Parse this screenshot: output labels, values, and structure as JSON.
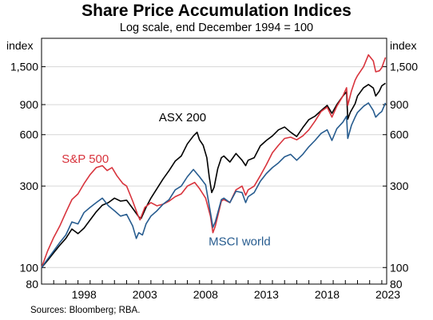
{
  "chart_data": {
    "type": "line",
    "title": "Share Price Accumulation Indices",
    "subtitle": "Log scale, end December 1994 = 100",
    "ylabel_left": "index",
    "ylabel_right": "index",
    "yscale": "log",
    "ylim": [
      80,
      2200
    ],
    "y_ticks": [
      80,
      100,
      300,
      600,
      900,
      1500
    ],
    "y_tick_labels": [
      "80",
      "100",
      "300",
      "600",
      "900",
      "1,500"
    ],
    "xlim": [
      1995.0,
      2023.4
    ],
    "x_ticks": [
      1998,
      2003,
      2008,
      2013,
      2018,
      2023
    ],
    "x_tick_labels": [
      "1998",
      "2003",
      "2008",
      "2013",
      "2018",
      "2023"
    ],
    "grid": "horizontal",
    "source": "Sources: Bloomberg; RBA.",
    "series": [
      {
        "name": "ASX 200",
        "color": "#000000",
        "points": [
          [
            1995.0,
            100
          ],
          [
            1995.5,
            110
          ],
          [
            1996.0,
            122
          ],
          [
            1996.5,
            135
          ],
          [
            1997.0,
            148
          ],
          [
            1997.5,
            168
          ],
          [
            1998.0,
            158
          ],
          [
            1998.5,
            170
          ],
          [
            1999.0,
            190
          ],
          [
            1999.5,
            212
          ],
          [
            2000.0,
            232
          ],
          [
            2000.5,
            240
          ],
          [
            2001.0,
            255
          ],
          [
            2001.5,
            245
          ],
          [
            2002.0,
            248
          ],
          [
            2002.5,
            222
          ],
          [
            2003.0,
            198
          ],
          [
            2003.2,
            194
          ],
          [
            2003.6,
            225
          ],
          [
            2004.0,
            255
          ],
          [
            2004.5,
            290
          ],
          [
            2005.0,
            330
          ],
          [
            2005.5,
            370
          ],
          [
            2006.0,
            420
          ],
          [
            2006.5,
            450
          ],
          [
            2007.0,
            530
          ],
          [
            2007.5,
            590
          ],
          [
            2007.8,
            620
          ],
          [
            2008.0,
            560
          ],
          [
            2008.3,
            520
          ],
          [
            2008.6,
            440
          ],
          [
            2008.8,
            340
          ],
          [
            2009.0,
            275
          ],
          [
            2009.2,
            295
          ],
          [
            2009.5,
            380
          ],
          [
            2009.8,
            440
          ],
          [
            2010.0,
            450
          ],
          [
            2010.5,
            415
          ],
          [
            2011.0,
            465
          ],
          [
            2011.5,
            425
          ],
          [
            2011.8,
            395
          ],
          [
            2012.0,
            425
          ],
          [
            2012.5,
            440
          ],
          [
            2013.0,
            515
          ],
          [
            2013.5,
            555
          ],
          [
            2014.0,
            590
          ],
          [
            2014.5,
            640
          ],
          [
            2015.0,
            665
          ],
          [
            2015.5,
            620
          ],
          [
            2016.0,
            585
          ],
          [
            2016.5,
            660
          ],
          [
            2017.0,
            735
          ],
          [
            2017.5,
            770
          ],
          [
            2018.0,
            830
          ],
          [
            2018.5,
            890
          ],
          [
            2018.9,
            800
          ],
          [
            2019.3,
            900
          ],
          [
            2019.8,
            1010
          ],
          [
            2020.1,
            1070
          ],
          [
            2020.2,
            740
          ],
          [
            2020.4,
            810
          ],
          [
            2020.8,
            910
          ],
          [
            2021.0,
            1010
          ],
          [
            2021.5,
            1130
          ],
          [
            2021.9,
            1180
          ],
          [
            2022.3,
            1125
          ],
          [
            2022.5,
            1010
          ],
          [
            2022.8,
            1080
          ],
          [
            2023.0,
            1160
          ],
          [
            2023.3,
            1200
          ]
        ]
      },
      {
        "name": "S&P 500",
        "color": "#d8343d",
        "points": [
          [
            1995.0,
            100
          ],
          [
            1995.5,
            125
          ],
          [
            1996.0,
            150
          ],
          [
            1996.5,
            175
          ],
          [
            1997.0,
            210
          ],
          [
            1997.5,
            250
          ],
          [
            1998.0,
            270
          ],
          [
            1998.5,
            310
          ],
          [
            1999.0,
            350
          ],
          [
            1999.5,
            385
          ],
          [
            2000.0,
            395
          ],
          [
            2000.4,
            370
          ],
          [
            2000.8,
            385
          ],
          [
            2001.2,
            345
          ],
          [
            2001.7,
            310
          ],
          [
            2002.0,
            300
          ],
          [
            2002.5,
            245
          ],
          [
            2002.9,
            205
          ],
          [
            2003.1,
            190
          ],
          [
            2003.5,
            225
          ],
          [
            2004.0,
            240
          ],
          [
            2004.5,
            230
          ],
          [
            2005.0,
            235
          ],
          [
            2005.5,
            245
          ],
          [
            2006.0,
            260
          ],
          [
            2006.5,
            270
          ],
          [
            2007.0,
            300
          ],
          [
            2007.6,
            315
          ],
          [
            2008.0,
            290
          ],
          [
            2008.5,
            255
          ],
          [
            2008.9,
            200
          ],
          [
            2009.1,
            160
          ],
          [
            2009.3,
            175
          ],
          [
            2009.8,
            245
          ],
          [
            2010.0,
            250
          ],
          [
            2010.5,
            240
          ],
          [
            2011.0,
            285
          ],
          [
            2011.5,
            300
          ],
          [
            2011.8,
            265
          ],
          [
            2012.0,
            285
          ],
          [
            2012.5,
            300
          ],
          [
            2013.0,
            345
          ],
          [
            2013.5,
            400
          ],
          [
            2014.0,
            470
          ],
          [
            2014.5,
            520
          ],
          [
            2015.0,
            570
          ],
          [
            2015.5,
            580
          ],
          [
            2016.0,
            560
          ],
          [
            2016.5,
            590
          ],
          [
            2017.0,
            640
          ],
          [
            2017.5,
            720
          ],
          [
            2018.0,
            820
          ],
          [
            2018.5,
            870
          ],
          [
            2018.9,
            760
          ],
          [
            2019.3,
            880
          ],
          [
            2019.8,
            1010
          ],
          [
            2020.1,
            1130
          ],
          [
            2020.2,
            890
          ],
          [
            2020.5,
            1080
          ],
          [
            2020.8,
            1250
          ],
          [
            2021.0,
            1330
          ],
          [
            2021.5,
            1500
          ],
          [
            2021.9,
            1760
          ],
          [
            2022.3,
            1620
          ],
          [
            2022.5,
            1400
          ],
          [
            2022.8,
            1420
          ],
          [
            2023.0,
            1480
          ],
          [
            2023.3,
            1700
          ]
        ]
      },
      {
        "name": "MSCI world",
        "color": "#275c8f",
        "points": [
          [
            1995.0,
            100
          ],
          [
            1995.5,
            112
          ],
          [
            1996.0,
            125
          ],
          [
            1996.5,
            140
          ],
          [
            1997.0,
            155
          ],
          [
            1997.5,
            185
          ],
          [
            1998.0,
            180
          ],
          [
            1998.5,
            210
          ],
          [
            1999.0,
            225
          ],
          [
            1999.5,
            240
          ],
          [
            2000.0,
            255
          ],
          [
            2000.5,
            230
          ],
          [
            2001.0,
            215
          ],
          [
            2001.5,
            200
          ],
          [
            2002.0,
            205
          ],
          [
            2002.5,
            175
          ],
          [
            2002.8,
            148
          ],
          [
            2003.0,
            160
          ],
          [
            2003.3,
            155
          ],
          [
            2003.6,
            180
          ],
          [
            2004.0,
            200
          ],
          [
            2004.5,
            215
          ],
          [
            2005.0,
            235
          ],
          [
            2005.5,
            250
          ],
          [
            2006.0,
            285
          ],
          [
            2006.5,
            300
          ],
          [
            2007.0,
            340
          ],
          [
            2007.5,
            375
          ],
          [
            2008.0,
            340
          ],
          [
            2008.5,
            305
          ],
          [
            2008.9,
            210
          ],
          [
            2009.1,
            172
          ],
          [
            2009.3,
            185
          ],
          [
            2009.8,
            250
          ],
          [
            2010.0,
            255
          ],
          [
            2010.5,
            240
          ],
          [
            2011.0,
            280
          ],
          [
            2011.5,
            275
          ],
          [
            2011.8,
            240
          ],
          [
            2012.0,
            260
          ],
          [
            2012.5,
            275
          ],
          [
            2013.0,
            320
          ],
          [
            2013.5,
            355
          ],
          [
            2014.0,
            385
          ],
          [
            2014.5,
            410
          ],
          [
            2015.0,
            445
          ],
          [
            2015.5,
            460
          ],
          [
            2016.0,
            425
          ],
          [
            2016.5,
            460
          ],
          [
            2017.0,
            510
          ],
          [
            2017.5,
            555
          ],
          [
            2018.0,
            610
          ],
          [
            2018.5,
            640
          ],
          [
            2018.9,
            555
          ],
          [
            2019.3,
            650
          ],
          [
            2019.8,
            710
          ],
          [
            2020.1,
            770
          ],
          [
            2020.2,
            570
          ],
          [
            2020.5,
            680
          ],
          [
            2020.8,
            760
          ],
          [
            2021.0,
            810
          ],
          [
            2021.5,
            880
          ],
          [
            2021.9,
            920
          ],
          [
            2022.3,
            830
          ],
          [
            2022.5,
            760
          ],
          [
            2022.8,
            800
          ],
          [
            2023.0,
            820
          ],
          [
            2023.3,
            920
          ]
        ]
      }
    ],
    "annotations": [
      {
        "text": "ASX 200",
        "series": "ASX 200",
        "x": 2006.6,
        "y": 720
      },
      {
        "text": "S&P 500",
        "series": "S&P 500",
        "x": 1998.6,
        "y": 410
      },
      {
        "text": "MSCI world",
        "series": "MSCI world",
        "x": 2011.3,
        "y": 135
      }
    ]
  }
}
